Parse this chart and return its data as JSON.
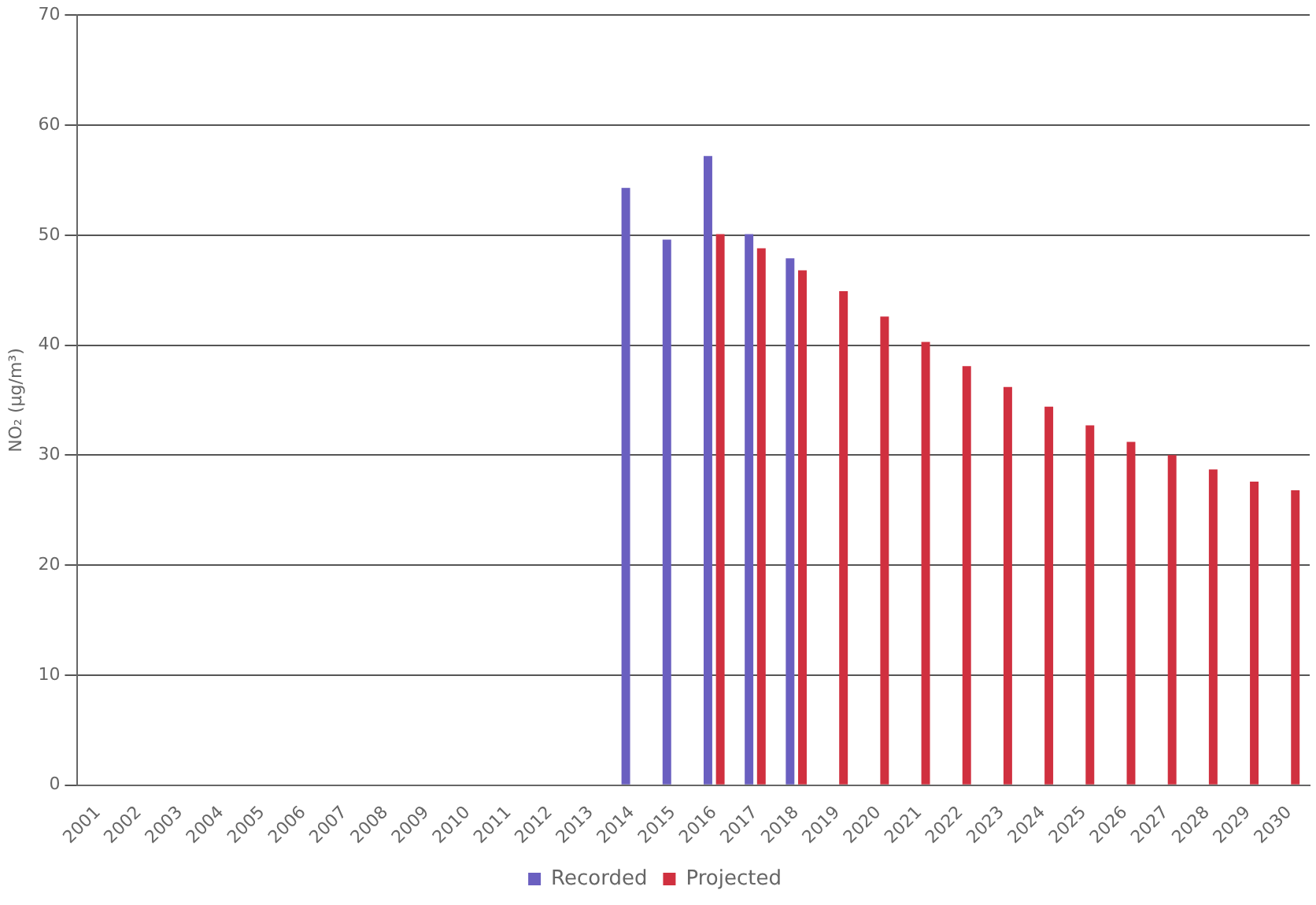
{
  "chart_data": {
    "type": "bar",
    "ylabel": "NO₂ (µg/m³)",
    "categories": [
      "2001",
      "2002",
      "2003",
      "2004",
      "2005",
      "2006",
      "2007",
      "2008",
      "2009",
      "2010",
      "2011",
      "2012",
      "2013",
      "2014",
      "2015",
      "2016",
      "2017",
      "2018",
      "2019",
      "2020",
      "2021",
      "2022",
      "2023",
      "2024",
      "2025",
      "2026",
      "2027",
      "2028",
      "2029",
      "2030"
    ],
    "series": [
      {
        "name": "Recorded",
        "color": "#6a5fc0",
        "values": [
          null,
          null,
          null,
          null,
          null,
          null,
          null,
          null,
          null,
          null,
          null,
          null,
          null,
          54.3,
          49.6,
          57.2,
          50.1,
          47.9,
          null,
          null,
          null,
          null,
          null,
          null,
          null,
          null,
          null,
          null,
          null,
          null
        ]
      },
      {
        "name": "Projected",
        "color": "#d0303f",
        "values": [
          null,
          null,
          null,
          null,
          null,
          null,
          null,
          null,
          null,
          null,
          null,
          null,
          null,
          null,
          null,
          50.1,
          48.8,
          46.8,
          44.9,
          42.6,
          40.3,
          38.1,
          36.2,
          34.4,
          32.7,
          31.2,
          30.0,
          28.7,
          27.6,
          26.8
        ]
      }
    ],
    "ylim": [
      0,
      70
    ],
    "yticks": [
      0,
      10,
      20,
      30,
      40,
      50,
      60,
      70
    ],
    "grid": "y",
    "legend": "bottom"
  }
}
